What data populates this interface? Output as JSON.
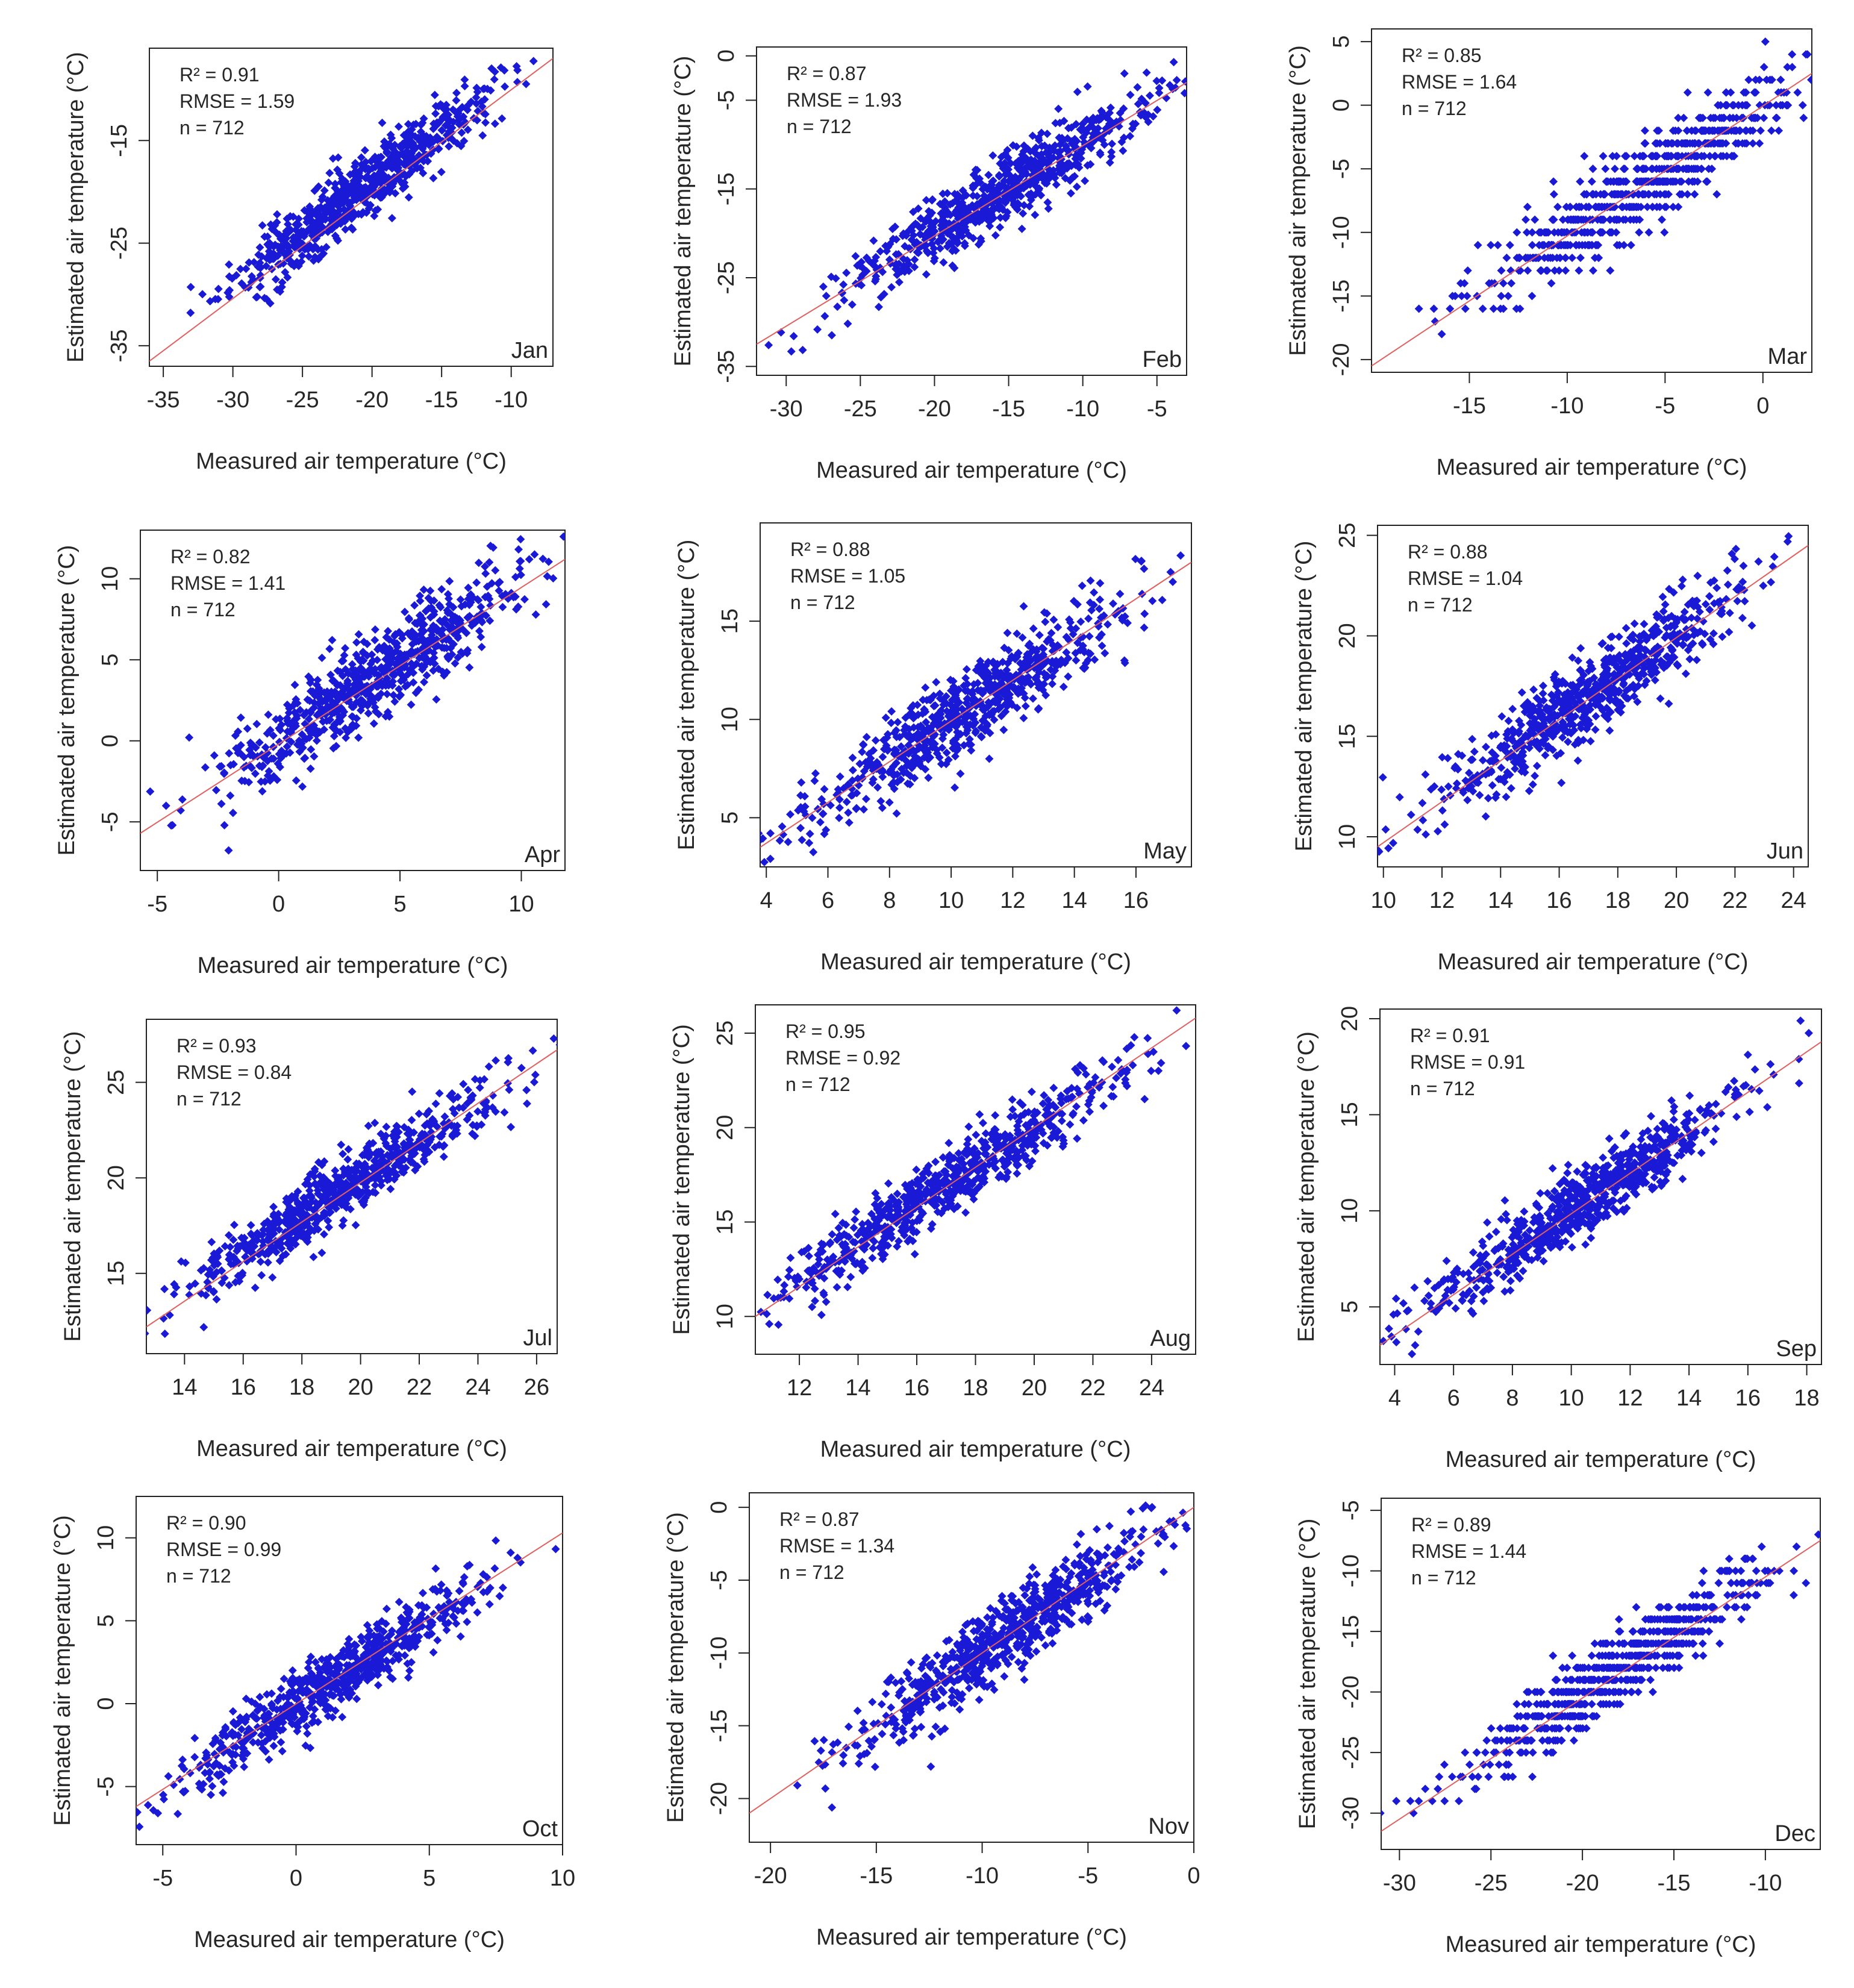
{
  "figure": {
    "x_title": "Measured air temperature (°C)",
    "y_title": "Estimated air temperature (°C)",
    "point_color": "#1a1ad6",
    "line_color": "#e06060",
    "n_points": 712
  },
  "chart_data": [
    {
      "type": "scatter",
      "title": "Jan",
      "xlabel": "Measured air temperature (°C)",
      "ylabel": "Estimated air temperature (°C)",
      "xlim": [
        -36,
        -7
      ],
      "ylim": [
        -37,
        -6
      ],
      "xticks": [
        -35,
        -30,
        -25,
        -20,
        -15,
        -10
      ],
      "yticks": [
        -35,
        -25,
        -15
      ],
      "r2": "R² = 0.91",
      "rmse": "RMSE = 1.59",
      "n": "n = 712",
      "r2_value": 0.91,
      "rmse_value": 1.59,
      "n_value": 712,
      "seed": 11,
      "center": [
        -21,
        -20
      ],
      "spread": 4.5,
      "sd": 1.6,
      "fit_line": [
        [
          -36,
          -36.5
        ],
        [
          -7,
          -7
        ]
      ]
    },
    {
      "type": "scatter",
      "title": "Feb",
      "xlabel": "Measured air temperature (°C)",
      "ylabel": "Estimated air temperature (°C)",
      "xlim": [
        -32,
        -3
      ],
      "ylim": [
        -36,
        1
      ],
      "xticks": [
        -30,
        -25,
        -20,
        -15,
        -10,
        -5
      ],
      "yticks": [
        -35,
        -25,
        -15,
        -5,
        0
      ],
      "ytick_labels_shown": [
        -35,
        -25,
        -15,
        -5,
        0
      ],
      "r2": "R² = 0.87",
      "rmse": "RMSE = 1.93",
      "n": "n = 712",
      "r2_value": 0.87,
      "rmse_value": 1.93,
      "n_value": 712,
      "seed": 23,
      "center": [
        -16,
        -16
      ],
      "spread": 5,
      "sd": 1.9,
      "fit_line": [
        [
          -32,
          -32.5
        ],
        [
          -3,
          -3
        ]
      ]
    },
    {
      "type": "scatter",
      "title": "Mar",
      "xlabel": "Measured air temperature (°C)",
      "ylabel": "Estimated air temperature (°C)",
      "xlim": [
        -20,
        2.5
      ],
      "ylim": [
        -21,
        6
      ],
      "xticks": [
        -15,
        -10,
        -5,
        0
      ],
      "yticks": [
        -20,
        -15,
        -10,
        -5,
        0,
        5
      ],
      "r2": "R² = 0.85",
      "rmse": "RMSE = 1.64",
      "n": "n = 712",
      "r2_value": 0.85,
      "rmse_value": 1.64,
      "n_value": 712,
      "seed": 37,
      "center": [
        -6,
        -6
      ],
      "spread": 4,
      "sd": 1.6,
      "quantize": 1,
      "fit_line": [
        [
          -20,
          -20.5
        ],
        [
          2.5,
          2.5
        ]
      ]
    },
    {
      "type": "scatter",
      "title": "Apr",
      "xlabel": "Measured air temperature (°C)",
      "ylabel": "Estimated air temperature (°C)",
      "xlim": [
        -5.7,
        11.8
      ],
      "ylim": [
        -8,
        13
      ],
      "xticks": [
        -5,
        0,
        5,
        10
      ],
      "yticks": [
        -5,
        0,
        5,
        10
      ],
      "r2": "R² = 0.82",
      "rmse": "RMSE = 1.41",
      "n": "n = 712",
      "r2_value": 0.82,
      "rmse_value": 1.41,
      "n_value": 712,
      "seed": 41,
      "center": [
        4,
        4
      ],
      "spread": 3,
      "sd": 1.4,
      "fit_line": [
        [
          -5.7,
          -5.7
        ],
        [
          11.8,
          11.2
        ]
      ]
    },
    {
      "type": "scatter",
      "title": "May",
      "xlabel": "Measured air temperature (°C)",
      "ylabel": "Estimated air temperature (°C)",
      "xlim": [
        3.8,
        17.8
      ],
      "ylim": [
        2.5,
        20
      ],
      "xticks": [
        4,
        6,
        8,
        10,
        12,
        14,
        16
      ],
      "yticks": [
        5,
        10,
        15
      ],
      "r2": "R² = 0.88",
      "rmse": "RMSE = 1.05",
      "n": "n = 712",
      "r2_value": 0.88,
      "rmse_value": 1.05,
      "n_value": 712,
      "seed": 53,
      "center": [
        10.5,
        10.5
      ],
      "spread": 2.5,
      "sd": 1.05,
      "fit_line": [
        [
          3.8,
          3.5
        ],
        [
          17.8,
          18
        ]
      ]
    },
    {
      "type": "scatter",
      "title": "Jun",
      "xlabel": "Measured air temperature (°C)",
      "ylabel": "Estimated air temperature (°C)",
      "xlim": [
        9.8,
        24.5
      ],
      "ylim": [
        8.5,
        25.5
      ],
      "xticks": [
        10,
        12,
        14,
        16,
        18,
        20,
        22,
        24
      ],
      "yticks": [
        10,
        15,
        20,
        25
      ],
      "r2": "R² = 0.88",
      "rmse": "RMSE = 1.04",
      "n": "n = 712",
      "r2_value": 0.88,
      "rmse_value": 1.04,
      "n_value": 712,
      "seed": 61,
      "center": [
        17,
        17
      ],
      "spread": 2.8,
      "sd": 1.0,
      "fit_line": [
        [
          9.8,
          9.5
        ],
        [
          24.5,
          24.5
        ]
      ]
    },
    {
      "type": "scatter",
      "title": "Jul",
      "xlabel": "Measured air temperature (°C)",
      "ylabel": "Estimated air temperature (°C)",
      "xlim": [
        12.7,
        26.7
      ],
      "ylim": [
        10.8,
        28.3
      ],
      "xticks": [
        14,
        16,
        18,
        20,
        22,
        24,
        26
      ],
      "yticks": [
        15,
        20,
        25
      ],
      "r2": "R² = 0.93",
      "rmse": "RMSE = 0.84",
      "n": "n = 712",
      "r2_value": 0.93,
      "rmse_value": 0.84,
      "n_value": 712,
      "seed": 71,
      "center": [
        19.5,
        19.5
      ],
      "spread": 2.8,
      "sd": 0.84,
      "fit_line": [
        [
          12.7,
          12.2
        ],
        [
          26.7,
          26.7
        ]
      ]
    },
    {
      "type": "scatter",
      "title": "Aug",
      "xlabel": "Measured air temperature (°C)",
      "ylabel": "Estimated air temperature (°C)",
      "xlim": [
        10.5,
        25.5
      ],
      "ylim": [
        8,
        26.5
      ],
      "xticks": [
        12,
        14,
        16,
        18,
        20,
        22,
        24
      ],
      "yticks": [
        10,
        15,
        20,
        25
      ],
      "r2": "R² = 0.95",
      "rmse": "RMSE = 0.92",
      "n": "n = 712",
      "r2_value": 0.95,
      "rmse_value": 0.92,
      "n_value": 712,
      "seed": 83,
      "center": [
        17,
        17
      ],
      "spread": 3,
      "sd": 0.92,
      "fit_line": [
        [
          10.5,
          10
        ],
        [
          25.5,
          25.8
        ]
      ]
    },
    {
      "type": "scatter",
      "title": "Sep",
      "xlabel": "Measured air temperature (°C)",
      "ylabel": "Estimated air temperature (°C)",
      "xlim": [
        3.5,
        18.5
      ],
      "ylim": [
        2,
        20.5
      ],
      "xticks": [
        4,
        6,
        8,
        10,
        12,
        14,
        16,
        18
      ],
      "yticks": [
        5,
        10,
        15,
        20
      ],
      "r2": "R² = 0.91",
      "rmse": "RMSE = 0.91",
      "n": "n = 712",
      "r2_value": 0.91,
      "rmse_value": 0.91,
      "n_value": 712,
      "seed": 97,
      "center": [
        10.5,
        10.5
      ],
      "spread": 2.6,
      "sd": 0.91,
      "fit_line": [
        [
          3.5,
          3
        ],
        [
          18.5,
          18.8
        ]
      ]
    },
    {
      "type": "scatter",
      "title": "Oct",
      "xlabel": "Measured air temperature (°C)",
      "ylabel": "Estimated air temperature (°C)",
      "xlim": [
        -6,
        10
      ],
      "ylim": [
        -8.5,
        12.5
      ],
      "xticks": [
        -5,
        0,
        5,
        10
      ],
      "yticks": [
        -5,
        0,
        5,
        10
      ],
      "r2": "R² = 0.90",
      "rmse": "RMSE = 0.99",
      "n": "n = 712",
      "r2_value": 0.9,
      "rmse_value": 0.99,
      "n_value": 712,
      "seed": 101,
      "center": [
        1.5,
        1.5
      ],
      "spread": 2.8,
      "sd": 0.99,
      "fit_line": [
        [
          -6,
          -6.2
        ],
        [
          10,
          10.3
        ]
      ]
    },
    {
      "type": "scatter",
      "title": "Nov",
      "xlabel": "Measured air temperature (°C)",
      "ylabel": "Estimated air temperature (°C)",
      "xlim": [
        -21,
        0
      ],
      "ylim": [
        -23,
        1
      ],
      "xticks": [
        -20,
        -15,
        -10,
        -5,
        0
      ],
      "yticks": [
        -20,
        -15,
        -10,
        -5,
        0
      ],
      "r2": "R² = 0.87",
      "rmse": "RMSE = 1.34",
      "n": "n = 712",
      "r2_value": 0.87,
      "rmse_value": 1.34,
      "n_value": 712,
      "seed": 113,
      "center": [
        -9,
        -9
      ],
      "spread": 3.6,
      "sd": 1.34,
      "fit_line": [
        [
          -21,
          -21
        ],
        [
          0,
          0
        ]
      ]
    },
    {
      "type": "scatter",
      "title": "Dec",
      "xlabel": "Measured air temperature (°C)",
      "ylabel": "Estimated air temperature (°C)",
      "xlim": [
        -31,
        -7
      ],
      "ylim": [
        -33,
        -4
      ],
      "xticks": [
        -30,
        -25,
        -20,
        -15,
        -10
      ],
      "yticks": [
        -30,
        -25,
        -20,
        -15,
        -10,
        -5
      ],
      "r2": "R² = 0.89",
      "rmse": "RMSE = 1.44",
      "n": "n = 712",
      "r2_value": 0.89,
      "rmse_value": 1.44,
      "n_value": 712,
      "seed": 127,
      "center": [
        -18,
        -18
      ],
      "spread": 4,
      "sd": 1.44,
      "quantize": 1,
      "fit_line": [
        [
          -31,
          -31.5
        ],
        [
          -7,
          -7.5
        ]
      ]
    }
  ]
}
